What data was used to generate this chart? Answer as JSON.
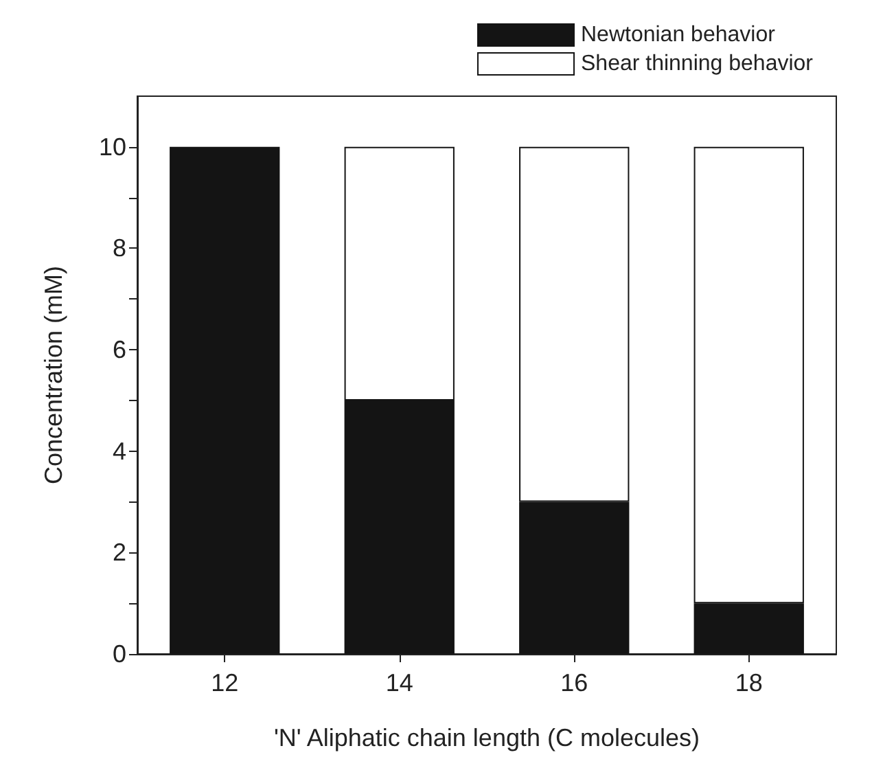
{
  "chart_data": {
    "type": "bar",
    "stacked": true,
    "xlabel": "'N' Aliphatic chain length (C molecules)",
    "ylabel": "Concentration (mM)",
    "categories": [
      "12",
      "14",
      "16",
      "18"
    ],
    "series": [
      {
        "name": "Newtonian behavior",
        "color": "#141414",
        "values": [
          10,
          5,
          3,
          1
        ]
      },
      {
        "name": "Shear thinning behavior",
        "color": "#ffffff",
        "values": [
          0,
          5,
          7,
          9
        ]
      }
    ],
    "ylim": [
      0,
      11
    ],
    "yticks": [
      0,
      {
        "value": 1,
        "label": null
      },
      2,
      {
        "value": 3,
        "label": null
      },
      4,
      {
        "value": 5,
        "label": null
      },
      6,
      {
        "value": 7,
        "label": null
      },
      8,
      {
        "value": 9,
        "label": null
      },
      10
    ],
    "grid": false,
    "legend": "top right"
  }
}
